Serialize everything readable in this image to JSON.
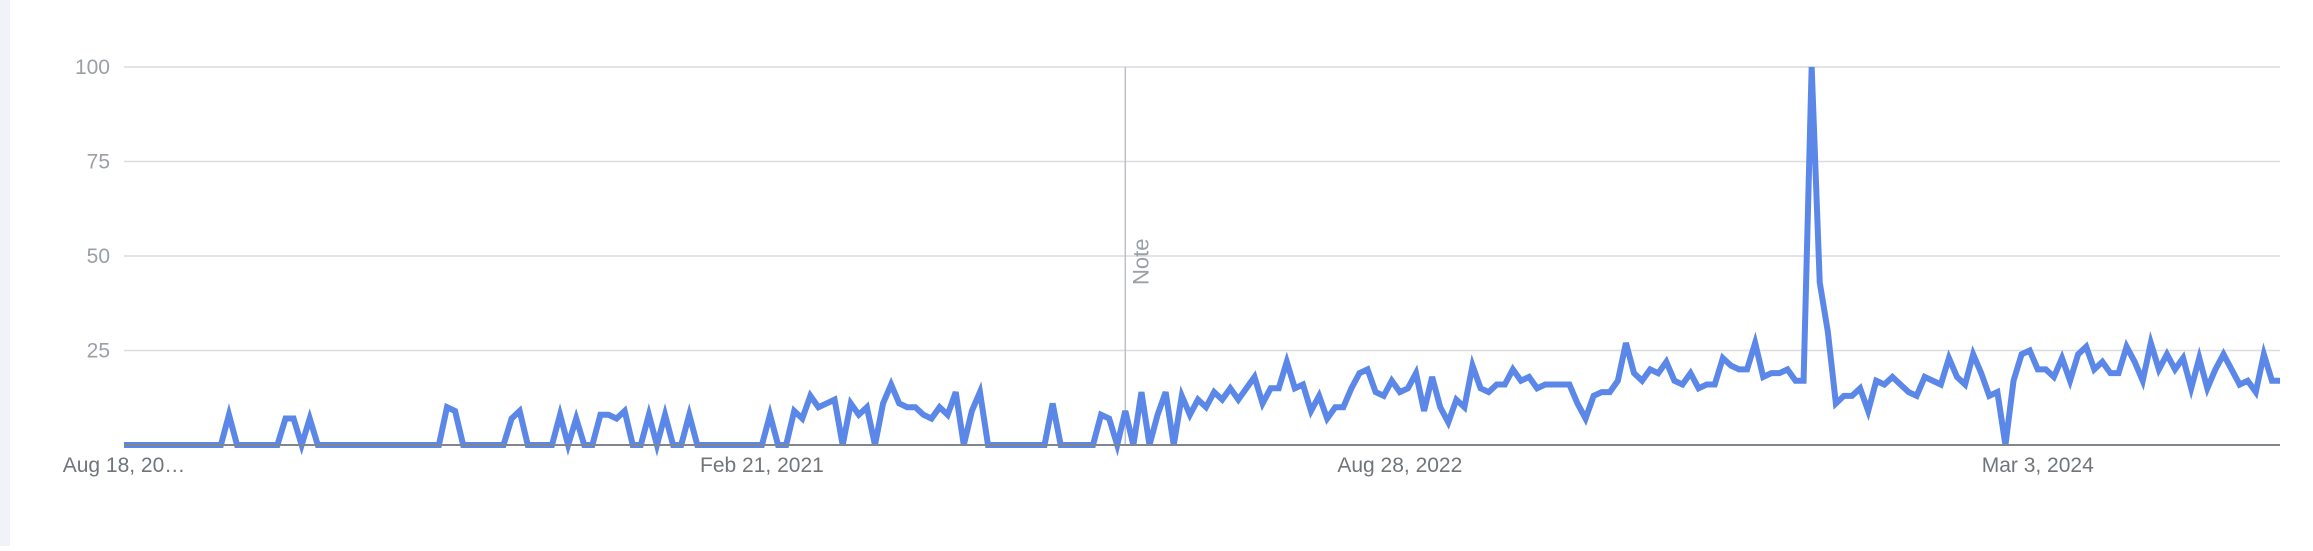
{
  "colors": {
    "line": "#5b87e8",
    "grid": "#dadce0",
    "axis": "#80868b",
    "annotation": "#bdc1c6"
  },
  "chart_data": {
    "type": "line",
    "title": "",
    "xlabel": "",
    "ylabel": "",
    "ylim": [
      0,
      100
    ],
    "yticks": [
      0,
      25,
      50,
      75,
      100
    ],
    "ytick_labels": [
      "",
      "25",
      "50",
      "75",
      "100"
    ],
    "xtick_labels": [
      {
        "label": "Aug 18, 20…",
        "index": 0
      },
      {
        "label": "Feb 21, 2021",
        "index": 79
      },
      {
        "label": "Aug 28, 2022",
        "index": 158
      },
      {
        "label": "Mar 3, 2024",
        "index": 237
      }
    ],
    "annotation": {
      "label": "Note",
      "index": 124
    },
    "grid": true,
    "legend": "none",
    "series": [
      {
        "values": [
          0,
          0,
          0,
          0,
          0,
          0,
          0,
          0,
          0,
          0,
          0,
          0,
          0,
          8,
          0,
          0,
          0,
          0,
          0,
          0,
          7,
          7,
          0,
          7,
          0,
          0,
          0,
          0,
          0,
          0,
          0,
          0,
          0,
          0,
          0,
          0,
          0,
          0,
          0,
          0,
          10,
          9,
          0,
          0,
          0,
          0,
          0,
          0,
          7,
          9,
          0,
          0,
          0,
          0,
          8,
          0,
          7,
          0,
          0,
          8,
          8,
          7,
          9,
          0,
          0,
          8,
          0,
          8,
          0,
          0,
          8,
          0,
          0,
          0,
          0,
          0,
          0,
          0,
          0,
          0,
          8,
          0,
          0,
          9,
          7,
          13,
          10,
          11,
          12,
          0,
          11,
          8,
          10,
          0,
          11,
          16,
          11,
          10,
          10,
          8,
          7,
          10,
          8,
          14,
          0,
          9,
          14,
          0,
          0,
          0,
          0,
          0,
          0,
          0,
          0,
          11,
          0,
          0,
          0,
          0,
          0,
          8,
          7,
          0,
          9,
          0,
          14,
          0,
          8,
          14,
          0,
          13,
          8,
          12,
          10,
          14,
          12,
          15,
          12,
          15,
          18,
          11,
          15,
          15,
          22,
          15,
          16,
          9,
          13,
          7,
          10,
          10,
          15,
          19,
          20,
          14,
          13,
          17,
          14,
          15,
          19,
          9,
          18,
          10,
          6,
          12,
          10,
          21,
          15,
          14,
          16,
          16,
          20,
          17,
          18,
          15,
          16,
          16,
          16,
          16,
          11,
          7,
          13,
          14,
          14,
          17,
          27,
          19,
          17,
          20,
          19,
          22,
          17,
          16,
          19,
          15,
          16,
          16,
          23,
          21,
          20,
          20,
          27,
          18,
          19,
          19,
          20,
          17,
          17,
          100,
          43,
          30,
          11,
          13,
          13,
          15,
          9,
          17,
          16,
          18,
          16,
          14,
          13,
          18,
          17,
          16,
          23,
          18,
          16,
          24,
          19,
          13,
          14,
          0,
          17,
          24,
          25,
          20,
          20,
          18,
          23,
          17,
          24,
          26,
          20,
          22,
          19,
          19,
          26,
          22,
          17,
          27,
          20,
          24,
          20,
          23,
          15,
          23,
          15,
          20,
          24,
          20,
          16,
          17,
          14,
          24,
          17,
          17
        ]
      }
    ]
  }
}
